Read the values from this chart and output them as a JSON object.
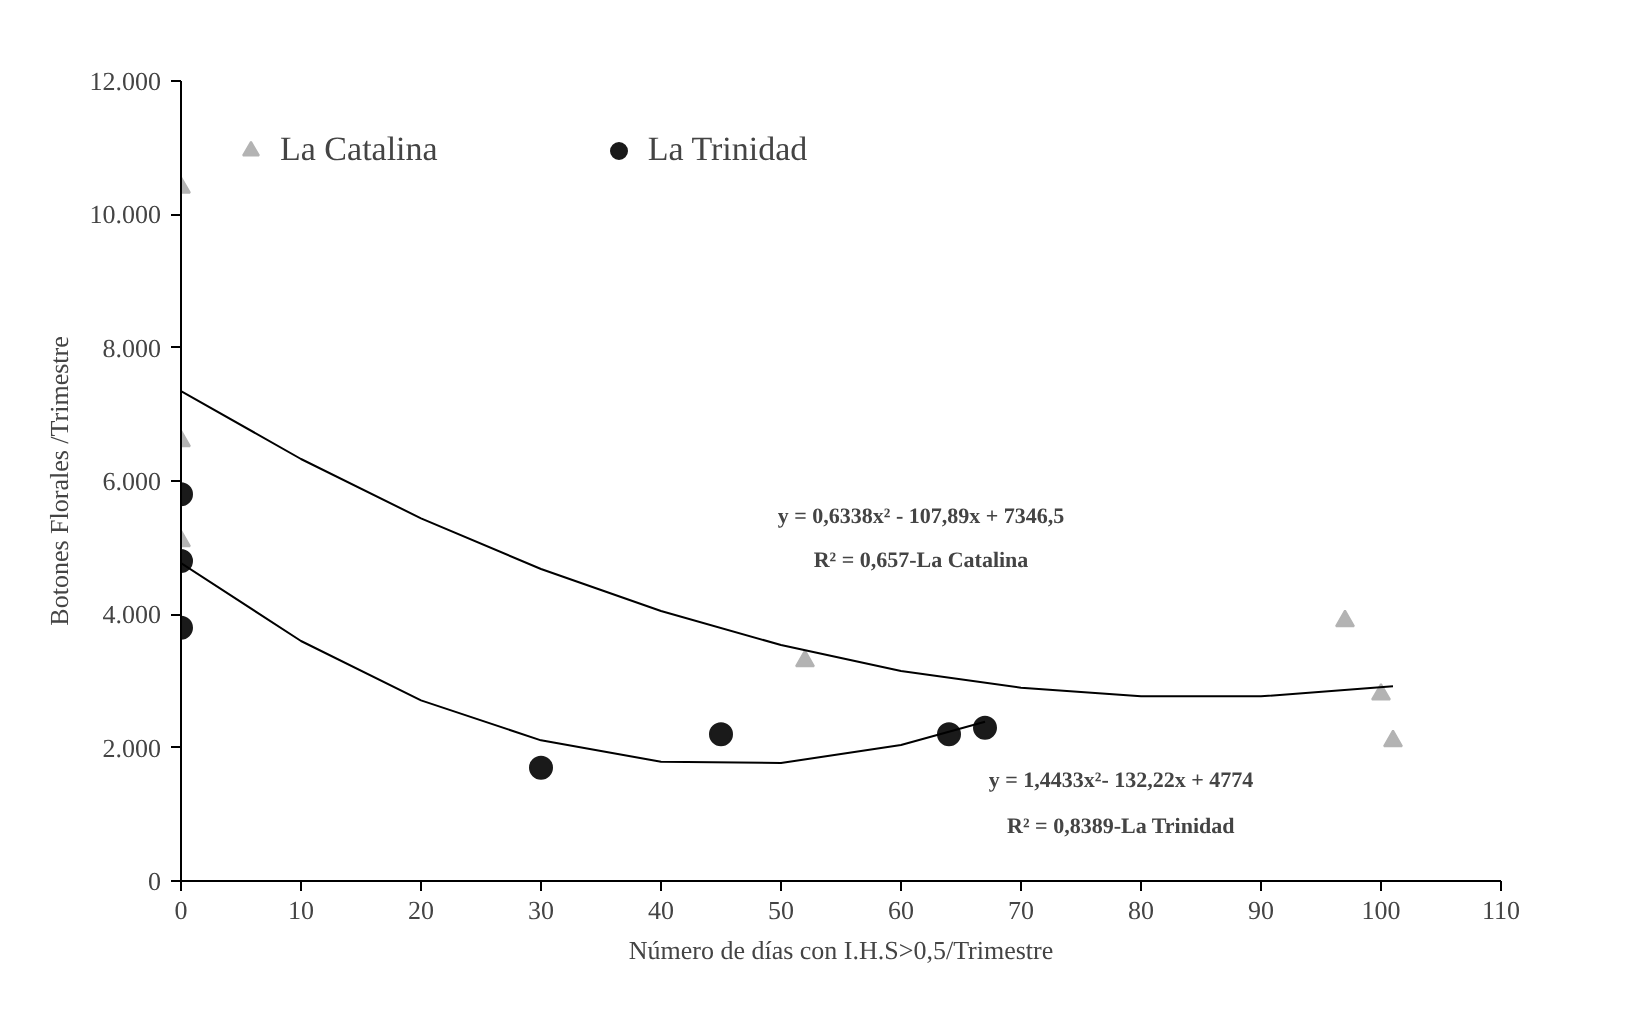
{
  "chart_data": {
    "type": "scatter",
    "xlabel": "Número de días con I.H.S>0,5/Trimestre",
    "ylabel": "Botones Florales /Trimestre",
    "xlim": [
      0,
      110
    ],
    "ylim": [
      0,
      12000
    ],
    "xticks": [
      0,
      10,
      20,
      30,
      40,
      50,
      60,
      70,
      80,
      90,
      100,
      110
    ],
    "yticks": [
      {
        "value": 0,
        "label": "0"
      },
      {
        "value": 2000,
        "label": "2.000"
      },
      {
        "value": 4000,
        "label": "4.000"
      },
      {
        "value": 6000,
        "label": "6.000"
      },
      {
        "value": 8000,
        "label": "8.000"
      },
      {
        "value": 10000,
        "label": "10.000"
      },
      {
        "value": 12000,
        "label": "12.000"
      }
    ],
    "grid": false,
    "legend": "top left",
    "series": [
      {
        "name": "La Catalina",
        "marker": "triangle",
        "color": "#b3b3b3",
        "x": [
          0,
          0,
          0,
          52,
          97,
          100,
          101
        ],
        "values": [
          10400,
          6600,
          5100,
          3300,
          3900,
          2800,
          2100
        ]
      },
      {
        "name": "La Trinidad",
        "marker": "circle",
        "color": "#1a1a1a",
        "x": [
          0,
          0,
          0,
          30,
          45,
          64,
          67
        ],
        "values": [
          5800,
          4800,
          3800,
          1700,
          2200,
          2200,
          2300
        ]
      },
      {
        "type": "line",
        "color": "#000000",
        "x": [
          0,
          10,
          20,
          30,
          40,
          50,
          60,
          70,
          80,
          90,
          101
        ],
        "values": [
          7350,
          6330,
          5440,
          4680,
          4050,
          3540,
          3150,
          2900,
          2770,
          2770,
          2920
        ]
      },
      {
        "type": "line",
        "color": "#000000",
        "x": [
          0,
          10,
          20,
          30,
          40,
          50,
          60,
          67
        ],
        "values": [
          4770,
          3600,
          2710,
          2110,
          1790,
          1770,
          2040,
          2390
        ]
      }
    ],
    "annotations": [
      "y = 0,6338x² - 107,89x + 7346,5",
      "R² = 0,657-La Catalina",
      "y = 1,4433x²- 132,22x + 4774",
      "R² = 0,8389-La Trinidad"
    ]
  }
}
